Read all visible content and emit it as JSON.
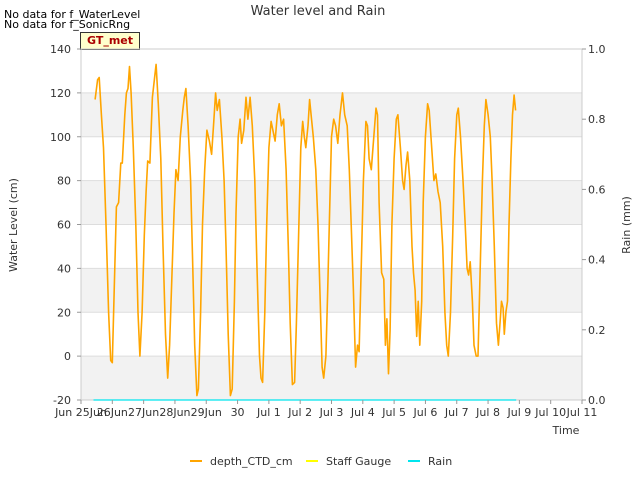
{
  "notes": [
    "No data for f_WaterLevel",
    "No data for f_SonicRng"
  ],
  "site_label": "GT_met",
  "colors": {
    "depth": "#ffa500",
    "staff": "#ffff00",
    "rain": "#00e5ee",
    "band": "#f2f2f2",
    "grid": "#dddddd",
    "axis": "#999999"
  },
  "chart_data": {
    "type": "line",
    "title": "Water level and Rain",
    "xlabel": "Time",
    "ylabel": "Water Level (cm)",
    "y2label": "Rain (mm)",
    "x_unit": "days since Jun 25",
    "xlim": [
      -1,
      15
    ],
    "ylim": [
      -20,
      140
    ],
    "y2lim": [
      0.0,
      1.0
    ],
    "y_ticks": [
      -20,
      0,
      20,
      40,
      60,
      80,
      100,
      120,
      140
    ],
    "y2_ticks": [
      "0.0",
      "0.2",
      "0.4",
      "0.6",
      "0.8",
      "1.0"
    ],
    "x_ticks": [
      {
        "x": -1,
        "label": "Jun 25Jun"
      },
      {
        "x": 0,
        "label": "26Jun"
      },
      {
        "x": 1,
        "label": "27Jun"
      },
      {
        "x": 2,
        "label": "28Jun"
      },
      {
        "x": 3,
        "label": "29Jun"
      },
      {
        "x": 4,
        "label": "30"
      },
      {
        "x": 5,
        "label": "Jul 1"
      },
      {
        "x": 6,
        "label": "Jul 2"
      },
      {
        "x": 7,
        "label": "Jul 3"
      },
      {
        "x": 8,
        "label": "Jul 4"
      },
      {
        "x": 9,
        "label": "Jul 5"
      },
      {
        "x": 10,
        "label": "Jul 6"
      },
      {
        "x": 11,
        "label": "Jul 7"
      },
      {
        "x": 12,
        "label": "Jul 8"
      },
      {
        "x": 13,
        "label": "Jul 9"
      },
      {
        "x": 14,
        "label": "Jul 10"
      },
      {
        "x": 15,
        "label": "Jul 11"
      }
    ],
    "series": [
      {
        "name": "depth_CTD_cm",
        "points": [
          [
            -0.55,
            117
          ],
          [
            -0.47,
            126
          ],
          [
            -0.42,
            127
          ],
          [
            -0.35,
            110
          ],
          [
            -0.28,
            95
          ],
          [
            -0.2,
            60
          ],
          [
            -0.12,
            20
          ],
          [
            -0.05,
            -2
          ],
          [
            0.0,
            -3
          ],
          [
            0.06,
            30
          ],
          [
            0.13,
            68
          ],
          [
            0.2,
            70
          ],
          [
            0.27,
            88
          ],
          [
            0.32,
            88
          ],
          [
            0.4,
            110
          ],
          [
            0.45,
            120
          ],
          [
            0.5,
            122
          ],
          [
            0.55,
            132
          ],
          [
            0.6,
            120
          ],
          [
            0.67,
            95
          ],
          [
            0.75,
            60
          ],
          [
            0.82,
            20
          ],
          [
            0.88,
            0
          ],
          [
            0.95,
            20
          ],
          [
            1.02,
            55
          ],
          [
            1.08,
            75
          ],
          [
            1.13,
            89
          ],
          [
            1.2,
            88
          ],
          [
            1.28,
            118
          ],
          [
            1.35,
            127
          ],
          [
            1.4,
            133
          ],
          [
            1.47,
            115
          ],
          [
            1.55,
            90
          ],
          [
            1.62,
            50
          ],
          [
            1.7,
            10
          ],
          [
            1.77,
            -10
          ],
          [
            1.83,
            5
          ],
          [
            1.9,
            35
          ],
          [
            1.97,
            65
          ],
          [
            2.03,
            85
          ],
          [
            2.1,
            80
          ],
          [
            2.17,
            100
          ],
          [
            2.25,
            112
          ],
          [
            2.3,
            118
          ],
          [
            2.35,
            122
          ],
          [
            2.42,
            105
          ],
          [
            2.5,
            80
          ],
          [
            2.57,
            40
          ],
          [
            2.63,
            5
          ],
          [
            2.7,
            -18
          ],
          [
            2.75,
            -15
          ],
          [
            2.82,
            20
          ],
          [
            2.88,
            60
          ],
          [
            2.95,
            85
          ],
          [
            3.02,
            103
          ],
          [
            3.1,
            98
          ],
          [
            3.17,
            92
          ],
          [
            3.23,
            105
          ],
          [
            3.3,
            120
          ],
          [
            3.35,
            112
          ],
          [
            3.42,
            117
          ],
          [
            3.5,
            100
          ],
          [
            3.57,
            80
          ],
          [
            3.63,
            50
          ],
          [
            3.7,
            10
          ],
          [
            3.77,
            -18
          ],
          [
            3.83,
            -15
          ],
          [
            3.9,
            25
          ],
          [
            3.95,
            65
          ],
          [
            4.02,
            100
          ],
          [
            4.08,
            108
          ],
          [
            4.13,
            97
          ],
          [
            4.2,
            103
          ],
          [
            4.27,
            118
          ],
          [
            4.33,
            108
          ],
          [
            4.4,
            118
          ],
          [
            4.47,
            105
          ],
          [
            4.55,
            80
          ],
          [
            4.62,
            40
          ],
          [
            4.7,
            0
          ],
          [
            4.75,
            -10
          ],
          [
            4.8,
            -12
          ],
          [
            4.87,
            20
          ],
          [
            4.93,
            60
          ],
          [
            5.0,
            95
          ],
          [
            5.07,
            107
          ],
          [
            5.13,
            103
          ],
          [
            5.2,
            98
          ],
          [
            5.27,
            110
          ],
          [
            5.33,
            115
          ],
          [
            5.4,
            105
          ],
          [
            5.47,
            108
          ],
          [
            5.55,
            85
          ],
          [
            5.62,
            50
          ],
          [
            5.68,
            15
          ],
          [
            5.75,
            -13
          ],
          [
            5.82,
            -12
          ],
          [
            5.88,
            15
          ],
          [
            5.95,
            55
          ],
          [
            6.02,
            95
          ],
          [
            6.08,
            107
          ],
          [
            6.13,
            100
          ],
          [
            6.18,
            95
          ],
          [
            6.25,
            105
          ],
          [
            6.3,
            117
          ],
          [
            6.35,
            110
          ],
          [
            6.42,
            100
          ],
          [
            6.5,
            85
          ],
          [
            6.57,
            60
          ],
          [
            6.63,
            30
          ],
          [
            6.7,
            -5
          ],
          [
            6.75,
            -10
          ],
          [
            6.82,
            0
          ],
          [
            6.88,
            30
          ],
          [
            6.93,
            60
          ],
          [
            7.0,
            100
          ],
          [
            7.07,
            108
          ],
          [
            7.13,
            105
          ],
          [
            7.2,
            97
          ],
          [
            7.27,
            110
          ],
          [
            7.35,
            120
          ],
          [
            7.42,
            110
          ],
          [
            7.5,
            105
          ],
          [
            7.57,
            85
          ],
          [
            7.63,
            60
          ],
          [
            7.7,
            30
          ],
          [
            7.77,
            -5
          ],
          [
            7.83,
            5
          ],
          [
            7.88,
            2
          ],
          [
            7.95,
            40
          ],
          [
            8.02,
            80
          ],
          [
            8.1,
            107
          ],
          [
            8.15,
            105
          ],
          [
            8.2,
            90
          ],
          [
            8.27,
            85
          ],
          [
            8.35,
            100
          ],
          [
            8.42,
            113
          ],
          [
            8.47,
            110
          ],
          [
            8.52,
            70
          ],
          [
            8.6,
            38
          ],
          [
            8.67,
            35
          ],
          [
            8.72,
            5
          ],
          [
            8.77,
            17
          ],
          [
            8.82,
            -8
          ],
          [
            8.87,
            12
          ],
          [
            8.93,
            60
          ],
          [
            9.0,
            90
          ],
          [
            9.07,
            108
          ],
          [
            9.12,
            110
          ],
          [
            9.2,
            95
          ],
          [
            9.27,
            80
          ],
          [
            9.32,
            76
          ],
          [
            9.38,
            87
          ],
          [
            9.43,
            93
          ],
          [
            9.5,
            80
          ],
          [
            9.57,
            50
          ],
          [
            9.62,
            38
          ],
          [
            9.67,
            30
          ],
          [
            9.72,
            9
          ],
          [
            9.77,
            25
          ],
          [
            9.82,
            5
          ],
          [
            9.88,
            25
          ],
          [
            9.93,
            70
          ],
          [
            10.0,
            100
          ],
          [
            10.07,
            115
          ],
          [
            10.12,
            112
          ],
          [
            10.2,
            95
          ],
          [
            10.27,
            80
          ],
          [
            10.33,
            83
          ],
          [
            10.4,
            75
          ],
          [
            10.47,
            70
          ],
          [
            10.55,
            50
          ],
          [
            10.62,
            20
          ],
          [
            10.68,
            5
          ],
          [
            10.73,
            0
          ],
          [
            10.8,
            20
          ],
          [
            10.87,
            55
          ],
          [
            10.93,
            90
          ],
          [
            11.0,
            110
          ],
          [
            11.05,
            113
          ],
          [
            11.12,
            100
          ],
          [
            11.2,
            80
          ],
          [
            11.27,
            60
          ],
          [
            11.33,
            40
          ],
          [
            11.38,
            37
          ],
          [
            11.43,
            43
          ],
          [
            11.5,
            25
          ],
          [
            11.55,
            5
          ],
          [
            11.62,
            0
          ],
          [
            11.68,
            0
          ],
          [
            11.75,
            40
          ],
          [
            11.82,
            80
          ],
          [
            11.88,
            105
          ],
          [
            11.93,
            117
          ],
          [
            12.0,
            110
          ],
          [
            12.07,
            100
          ],
          [
            12.13,
            80
          ],
          [
            12.2,
            50
          ],
          [
            12.27,
            15
          ],
          [
            12.33,
            5
          ],
          [
            12.38,
            15
          ],
          [
            12.43,
            25
          ],
          [
            12.48,
            22
          ],
          [
            12.52,
            10
          ],
          [
            12.57,
            20
          ],
          [
            12.62,
            25
          ],
          [
            12.67,
            60
          ],
          [
            12.73,
            90
          ],
          [
            12.78,
            110
          ],
          [
            12.83,
            119
          ],
          [
            12.88,
            112
          ]
        ]
      },
      {
        "name": "Staff Gauge",
        "points": []
      },
      {
        "name": "Rain",
        "points": [
          [
            -0.6,
            0.0
          ],
          [
            12.9,
            0.0
          ]
        ]
      }
    ],
    "legend": {
      "placement": "bottom-center",
      "entries": [
        "depth_CTD_cm",
        "Staff Gauge",
        "Rain"
      ]
    }
  }
}
